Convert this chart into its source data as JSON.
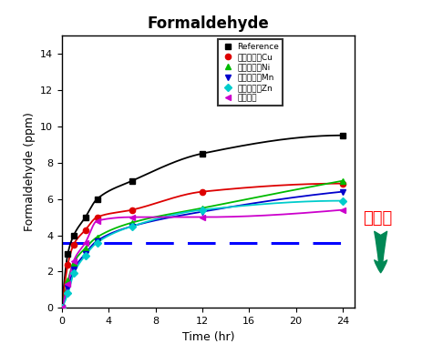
{
  "title": "Formaldehyde",
  "xlabel": "Time (hr)",
  "ylabel": "Formaldehyde (ppm)",
  "xlim": [
    0,
    25
  ],
  "ylim": [
    0,
    15
  ],
  "xticks": [
    0,
    4,
    8,
    12,
    16,
    20,
    24
  ],
  "yticks": [
    0,
    2,
    4,
    6,
    8,
    10,
    12,
    14
  ],
  "target_line_y": 3.6,
  "target_label": "목표치",
  "series": [
    {
      "label": "Reference",
      "color": "#000000",
      "marker": "s",
      "x": [
        0,
        0.5,
        1,
        2,
        3,
        6,
        12,
        24
      ],
      "y": [
        0,
        3.0,
        4.0,
        5.0,
        6.0,
        7.0,
        8.5,
        9.5
      ]
    },
    {
      "label": "금속소취제Cu",
      "color": "#dd0000",
      "marker": "o",
      "x": [
        0,
        0.5,
        1,
        2,
        3,
        6,
        12,
        24
      ],
      "y": [
        0,
        2.4,
        3.5,
        4.3,
        5.0,
        5.4,
        6.4,
        6.85
      ]
    },
    {
      "label": "금속소취제Ni",
      "color": "#00bb00",
      "marker": "^",
      "x": [
        0,
        0.5,
        1,
        2,
        3,
        6,
        12,
        24
      ],
      "y": [
        0,
        1.5,
        2.5,
        3.3,
        3.9,
        4.7,
        5.5,
        7.0
      ]
    },
    {
      "label": "금속소취제Mn",
      "color": "#0000cc",
      "marker": "v",
      "x": [
        0,
        0.5,
        1,
        2,
        3,
        6,
        12,
        24
      ],
      "y": [
        0,
        1.1,
        2.1,
        3.0,
        3.7,
        4.5,
        5.3,
        6.4
      ]
    },
    {
      "label": "금속소취제Zn",
      "color": "#00cccc",
      "marker": "D",
      "x": [
        0,
        0.5,
        1,
        2,
        3,
        6,
        12,
        24
      ],
      "y": [
        0,
        0.8,
        1.9,
        2.9,
        3.6,
        4.5,
        5.4,
        5.9
      ]
    },
    {
      "label": "아미드계",
      "color": "#cc00cc",
      "marker": "<",
      "x": [
        0,
        0.5,
        1,
        2,
        3,
        6,
        12,
        24
      ],
      "y": [
        0,
        1.3,
        2.6,
        3.6,
        4.8,
        5.0,
        5.0,
        5.4
      ]
    }
  ],
  "background_color": "#ffffff",
  "plot_bg_color": "#ffffff",
  "arrow_color": "#008855"
}
